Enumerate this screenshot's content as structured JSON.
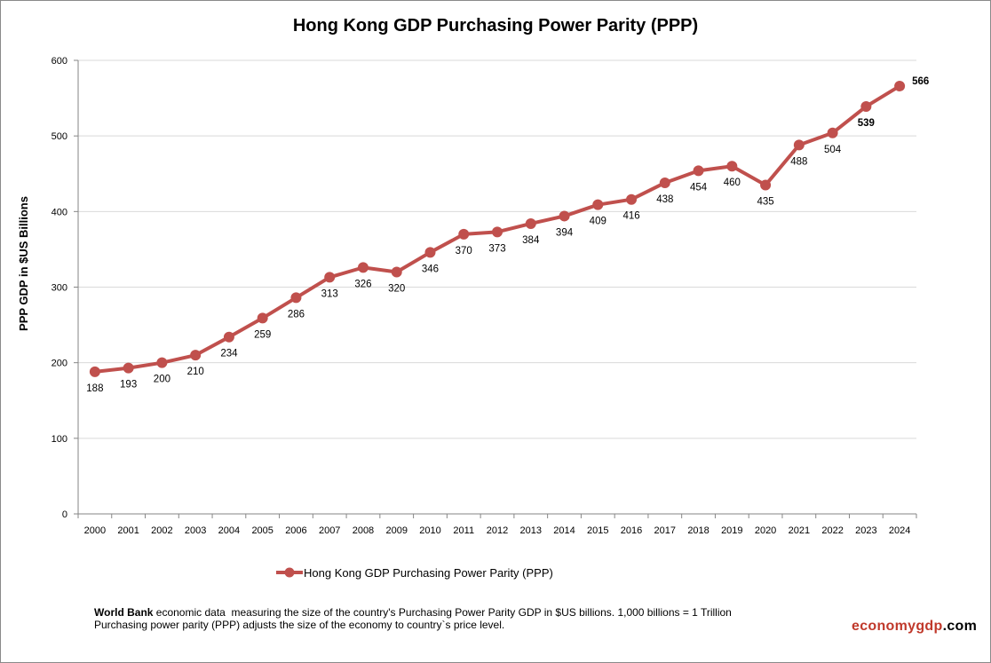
{
  "chart_data": {
    "type": "line",
    "title": "Hong Kong GDP Purchasing Power Parity (PPP)",
    "ylabel": "PPP GDP in $US Billions",
    "xlabel": "",
    "ylim": [
      0,
      600
    ],
    "yticks": [
      0,
      100,
      200,
      300,
      400,
      500,
      600
    ],
    "grid": "horizontal",
    "legend_position": "bottom",
    "categories": [
      "2000",
      "2001",
      "2002",
      "2003",
      "2004",
      "2005",
      "2006",
      "2007",
      "2008",
      "2009",
      "2010",
      "2011",
      "2012",
      "2013",
      "2014",
      "2015",
      "2016",
      "2017",
      "2018",
      "2019",
      "2020",
      "2021",
      "2022",
      "2023",
      "2024"
    ],
    "series": [
      {
        "name": "Hong Kong GDP Purchasing Power Parity (PPP)",
        "color": "#C0504D",
        "values": [
          188,
          193,
          200,
          210,
          234,
          259,
          286,
          313,
          326,
          320,
          346,
          370,
          373,
          384,
          394,
          409,
          416,
          438,
          454,
          460,
          435,
          488,
          504,
          539,
          566
        ]
      }
    ]
  },
  "footnote": {
    "source_bold": "World Bank",
    "line1_rest": " economic data  measuring the size of the country's Purchasing Power Parity GDP in $US billions. 1,000 billions = 1 Trillion",
    "line2": "Purchasing power parity (PPP) adjusts the size of the economy to country`s price level."
  },
  "brand": {
    "part1": "economy",
    "part2": "gdp",
    "part3": ".com",
    "color1": "#C0392B",
    "color2": "#000000"
  }
}
